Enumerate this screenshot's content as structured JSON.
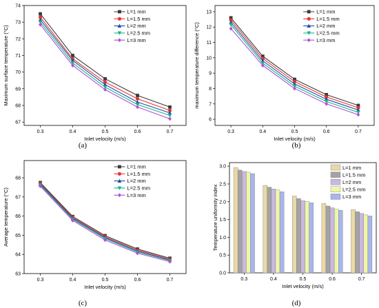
{
  "colors": {
    "line_series": [
      "#3a3a3a",
      "#e8342e",
      "#1c4ea8",
      "#17b48c",
      "#b24fd6"
    ],
    "bar_series": [
      "#ead8a6",
      "#a3a3a3",
      "#c9b8e0",
      "#eef7a8",
      "#a8b5ee"
    ]
  },
  "chart_data": [
    {
      "type": "line",
      "caption": "(a)",
      "xlabel": "Inlet velocity (m/s)",
      "ylabel": "Maximum surface temperature (°C)",
      "x": [
        0.3,
        0.4,
        0.5,
        0.6,
        0.7
      ],
      "xlim": [
        0.25,
        0.75
      ],
      "ylim": [
        66.8,
        74.0
      ],
      "x_ticks": [
        0.3,
        0.4,
        0.5,
        0.6,
        0.7
      ],
      "y_ticks": [
        67,
        68,
        69,
        70,
        71,
        72,
        73,
        74
      ],
      "legend_position": "top-right",
      "series": [
        {
          "name": "L=1 mm",
          "marker": "square",
          "values": [
            73.5,
            71.0,
            69.6,
            68.6,
            67.9
          ]
        },
        {
          "name": "L=1.5 mm",
          "marker": "circle",
          "values": [
            73.3,
            70.8,
            69.4,
            68.4,
            67.7
          ]
        },
        {
          "name": "L=2 mm",
          "marker": "triangle-up",
          "values": [
            73.15,
            70.7,
            69.25,
            68.2,
            67.55
          ]
        },
        {
          "name": "L=2.5 mm",
          "marker": "triangle-down",
          "values": [
            73.0,
            70.55,
            69.1,
            68.05,
            67.4
          ]
        },
        {
          "name": "L=3 mm",
          "marker": "diamond",
          "values": [
            72.85,
            70.4,
            68.95,
            67.9,
            67.2
          ]
        }
      ]
    },
    {
      "type": "line",
      "caption": "(b)",
      "xlabel": "Inlet velocity (m/s)",
      "ylabel": "maximum temperature difference (°C)",
      "x": [
        0.3,
        0.4,
        0.5,
        0.6,
        0.7
      ],
      "xlim": [
        0.25,
        0.75
      ],
      "ylim": [
        5.6,
        13.4
      ],
      "x_ticks": [
        0.3,
        0.4,
        0.5,
        0.6,
        0.7
      ],
      "y_ticks": [
        6,
        7,
        8,
        9,
        10,
        11,
        12,
        13
      ],
      "legend_position": "top-right",
      "series": [
        {
          "name": "L=1 mm",
          "marker": "square",
          "values": [
            12.6,
            10.1,
            8.6,
            7.6,
            6.9
          ]
        },
        {
          "name": "L=1.5 mm",
          "marker": "circle",
          "values": [
            12.45,
            9.95,
            8.45,
            7.45,
            6.75
          ]
        },
        {
          "name": "L=2 mm",
          "marker": "triangle-up",
          "values": [
            12.3,
            9.8,
            8.3,
            7.3,
            6.6
          ]
        },
        {
          "name": "L=2.5 mm",
          "marker": "triangle-down",
          "values": [
            12.15,
            9.65,
            8.15,
            7.15,
            6.45
          ]
        },
        {
          "name": "L=3 mm",
          "marker": "diamond",
          "values": [
            11.9,
            9.5,
            8.0,
            7.0,
            6.3
          ]
        }
      ]
    },
    {
      "type": "line",
      "caption": "(c)",
      "xlabel": "Inlet velocity (m/s)",
      "ylabel": "Average temperature (°C)",
      "x": [
        0.3,
        0.4,
        0.5,
        0.6,
        0.7
      ],
      "xlim": [
        0.25,
        0.75
      ],
      "ylim": [
        63.0,
        68.9
      ],
      "x_ticks": [
        0.3,
        0.4,
        0.5,
        0.6,
        0.7
      ],
      "y_ticks": [
        63,
        64,
        65,
        66,
        67,
        68
      ],
      "legend_position": "top-right",
      "series": [
        {
          "name": "L=1 mm",
          "marker": "square",
          "values": [
            67.75,
            65.98,
            64.98,
            64.28,
            63.8
          ]
        },
        {
          "name": "L=1.5 mm",
          "marker": "circle",
          "values": [
            67.7,
            65.93,
            64.92,
            64.22,
            63.75
          ]
        },
        {
          "name": "L=2 mm",
          "marker": "triangle-up",
          "values": [
            67.66,
            65.88,
            64.87,
            64.17,
            63.71
          ]
        },
        {
          "name": "L=2.5 mm",
          "marker": "triangle-down",
          "values": [
            67.62,
            65.83,
            64.82,
            64.12,
            63.67
          ]
        },
        {
          "name": "L=3 mm",
          "marker": "diamond",
          "values": [
            67.56,
            65.77,
            64.75,
            64.06,
            63.62
          ]
        }
      ]
    },
    {
      "type": "bar",
      "caption": "(d)",
      "xlabel": "Inlet velocity (m/s)",
      "ylabel": "Temperature uniformity index",
      "categories": [
        "0.3",
        "0.4",
        "0.5",
        "0.6",
        "0.7"
      ],
      "ylim": [
        0.0,
        3.1
      ],
      "y_ticks": [
        "0.0",
        "0.5",
        "1.0",
        "1.5",
        "2.0",
        "2.5",
        "3.0"
      ],
      "legend_position": "top-right",
      "series": [
        {
          "name": "L=1 mm",
          "values": [
            2.96,
            2.46,
            2.16,
            1.95,
            1.78
          ]
        },
        {
          "name": "L=1.5 mm",
          "values": [
            2.89,
            2.41,
            2.09,
            1.88,
            1.72
          ]
        },
        {
          "name": "L=2 mm",
          "values": [
            2.85,
            2.36,
            2.03,
            1.83,
            1.67
          ]
        },
        {
          "name": "L=2.5 mm",
          "values": [
            2.83,
            2.33,
            2.01,
            1.79,
            1.63
          ]
        },
        {
          "name": "L=3 mm",
          "values": [
            2.79,
            2.28,
            1.97,
            1.76,
            1.6
          ]
        }
      ]
    }
  ]
}
